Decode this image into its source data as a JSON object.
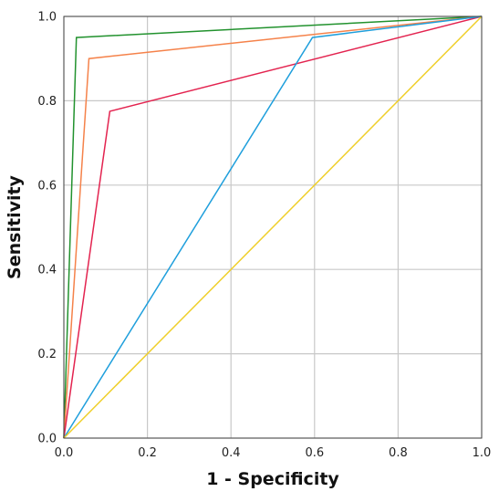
{
  "chart_data": {
    "type": "line",
    "title": "",
    "xlabel": "1 - Specificity",
    "ylabel": "Sensitivity",
    "xlim": [
      0,
      1
    ],
    "ylim": [
      0,
      1
    ],
    "x_ticks": [
      "0.0",
      "0.2",
      "0.4",
      "0.6",
      "0.8",
      "1.0"
    ],
    "y_ticks": [
      "0.0",
      "0.2",
      "0.4",
      "0.6",
      "0.8",
      "1.0"
    ],
    "grid": true,
    "legend": "none",
    "series": [
      {
        "color": "#22922e",
        "points": [
          [
            0,
            0
          ],
          [
            0.03,
            0.95
          ],
          [
            1,
            1
          ]
        ]
      },
      {
        "color": "#f5824a",
        "points": [
          [
            0,
            0
          ],
          [
            0.06,
            0.9
          ],
          [
            1,
            1
          ]
        ]
      },
      {
        "color": "#e3234f",
        "points": [
          [
            0,
            0
          ],
          [
            0.11,
            0.775
          ],
          [
            1,
            1
          ]
        ]
      },
      {
        "color": "#1f9fdc",
        "points": [
          [
            0,
            0
          ],
          [
            0.595,
            0.95
          ],
          [
            1,
            1
          ]
        ]
      },
      {
        "color": "#efcf2b",
        "points": [
          [
            0,
            0
          ],
          [
            1,
            1
          ]
        ]
      }
    ]
  }
}
